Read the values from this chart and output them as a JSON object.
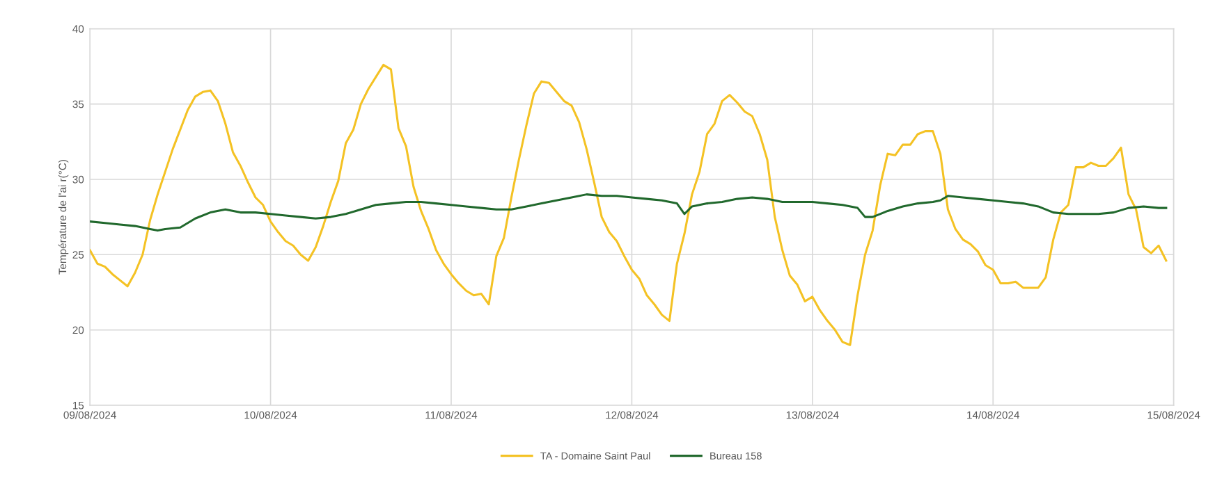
{
  "chart_data": {
    "type": "line",
    "ylabel": "Température de l'ai r(°C)",
    "xlim": [
      "2024-08-09",
      "2024-08-15"
    ],
    "xticks": [
      {
        "value": "2024-08-09",
        "label": "09/08/2024"
      },
      {
        "value": "2024-08-10",
        "label": "10/08/2024"
      },
      {
        "value": "2024-08-11",
        "label": "11/08/2024"
      },
      {
        "value": "2024-08-12",
        "label": "12/08/2024"
      },
      {
        "value": "2024-08-13",
        "label": "13/08/2024"
      },
      {
        "value": "2024-08-14",
        "label": "14/08/2024"
      },
      {
        "value": "2024-08-15",
        "label": "15/08/2024"
      }
    ],
    "ylim": [
      15,
      40
    ],
    "yticks": [
      15,
      20,
      25,
      30,
      35,
      40
    ],
    "grid": true,
    "legend": "bottom",
    "marker": "none",
    "line_style": "solid",
    "series": [
      {
        "name": "TA - Domaine Saint Paul",
        "color": "#f4c224",
        "x": [
          "2024-08-09T00:00",
          "2024-08-09T01:00",
          "2024-08-09T02:00",
          "2024-08-09T03:00",
          "2024-08-09T04:00",
          "2024-08-09T05:00",
          "2024-08-09T06:00",
          "2024-08-09T07:00",
          "2024-08-09T08:00",
          "2024-08-09T09:00",
          "2024-08-09T10:00",
          "2024-08-09T11:00",
          "2024-08-09T12:00",
          "2024-08-09T13:00",
          "2024-08-09T14:00",
          "2024-08-09T15:00",
          "2024-08-09T16:00",
          "2024-08-09T17:00",
          "2024-08-09T18:00",
          "2024-08-09T19:00",
          "2024-08-09T20:00",
          "2024-08-09T21:00",
          "2024-08-09T22:00",
          "2024-08-09T23:00",
          "2024-08-10T00:00",
          "2024-08-10T01:00",
          "2024-08-10T02:00",
          "2024-08-10T03:00",
          "2024-08-10T04:00",
          "2024-08-10T05:00",
          "2024-08-10T06:00",
          "2024-08-10T07:00",
          "2024-08-10T08:00",
          "2024-08-10T09:00",
          "2024-08-10T10:00",
          "2024-08-10T11:00",
          "2024-08-10T12:00",
          "2024-08-10T13:00",
          "2024-08-10T14:00",
          "2024-08-10T15:00",
          "2024-08-10T16:00",
          "2024-08-10T17:00",
          "2024-08-10T18:00",
          "2024-08-10T19:00",
          "2024-08-10T20:00",
          "2024-08-10T21:00",
          "2024-08-10T22:00",
          "2024-08-10T23:00",
          "2024-08-11T00:00",
          "2024-08-11T01:00",
          "2024-08-11T02:00",
          "2024-08-11T03:00",
          "2024-08-11T04:00",
          "2024-08-11T05:00",
          "2024-08-11T06:00",
          "2024-08-11T07:00",
          "2024-08-11T08:00",
          "2024-08-11T09:00",
          "2024-08-11T10:00",
          "2024-08-11T11:00",
          "2024-08-11T12:00",
          "2024-08-11T13:00",
          "2024-08-11T14:00",
          "2024-08-11T15:00",
          "2024-08-11T16:00",
          "2024-08-11T17:00",
          "2024-08-11T18:00",
          "2024-08-11T19:00",
          "2024-08-11T20:00",
          "2024-08-11T21:00",
          "2024-08-11T22:00",
          "2024-08-11T23:00",
          "2024-08-12T00:00",
          "2024-08-12T01:00",
          "2024-08-12T02:00",
          "2024-08-12T03:00",
          "2024-08-12T04:00",
          "2024-08-12T05:00",
          "2024-08-12T06:00",
          "2024-08-12T07:00",
          "2024-08-12T08:00",
          "2024-08-12T09:00",
          "2024-08-12T10:00",
          "2024-08-12T11:00",
          "2024-08-12T12:00",
          "2024-08-12T13:00",
          "2024-08-12T14:00",
          "2024-08-12T15:00",
          "2024-08-12T16:00",
          "2024-08-12T17:00",
          "2024-08-12T18:00",
          "2024-08-12T19:00",
          "2024-08-12T20:00",
          "2024-08-12T21:00",
          "2024-08-12T22:00",
          "2024-08-12T23:00",
          "2024-08-13T00:00",
          "2024-08-13T01:00",
          "2024-08-13T02:00",
          "2024-08-13T03:00",
          "2024-08-13T04:00",
          "2024-08-13T05:00",
          "2024-08-13T06:00",
          "2024-08-13T07:00",
          "2024-08-13T08:00",
          "2024-08-13T09:00",
          "2024-08-13T10:00",
          "2024-08-13T11:00",
          "2024-08-13T12:00",
          "2024-08-13T13:00",
          "2024-08-13T14:00",
          "2024-08-13T15:00",
          "2024-08-13T16:00",
          "2024-08-13T17:00",
          "2024-08-13T18:00",
          "2024-08-13T19:00",
          "2024-08-13T20:00",
          "2024-08-13T21:00",
          "2024-08-13T22:00",
          "2024-08-13T23:00",
          "2024-08-14T00:00",
          "2024-08-14T01:00",
          "2024-08-14T02:00",
          "2024-08-14T03:00",
          "2024-08-14T04:00",
          "2024-08-14T05:00",
          "2024-08-14T06:00",
          "2024-08-14T07:00",
          "2024-08-14T08:00",
          "2024-08-14T09:00",
          "2024-08-14T10:00",
          "2024-08-14T11:00",
          "2024-08-14T12:00",
          "2024-08-14T13:00",
          "2024-08-14T14:00",
          "2024-08-14T15:00",
          "2024-08-14T16:00",
          "2024-08-14T17:00",
          "2024-08-14T18:00",
          "2024-08-14T19:00",
          "2024-08-14T20:00",
          "2024-08-14T21:00",
          "2024-08-14T22:00",
          "2024-08-14T23:00"
        ],
        "values": [
          25.3,
          24.4,
          24.2,
          23.7,
          23.3,
          22.9,
          23.8,
          25.0,
          27.3,
          29.0,
          30.5,
          32.0,
          33.3,
          34.6,
          35.5,
          35.8,
          35.9,
          35.2,
          33.7,
          31.8,
          30.9,
          29.8,
          28.8,
          28.3,
          27.2,
          26.5,
          25.9,
          25.6,
          25.0,
          24.6,
          25.5,
          26.9,
          28.5,
          29.9,
          32.4,
          33.3,
          35.0,
          36.0,
          36.8,
          37.6,
          37.3,
          33.4,
          32.2,
          29.5,
          27.9,
          26.7,
          25.3,
          24.4,
          23.7,
          23.1,
          22.6,
          22.3,
          22.4,
          21.7,
          24.9,
          26.1,
          28.8,
          31.3,
          33.6,
          35.7,
          36.5,
          36.4,
          35.8,
          35.2,
          34.9,
          33.8,
          32.0,
          29.8,
          27.5,
          26.5,
          25.9,
          24.9,
          24.0,
          23.4,
          22.3,
          21.7,
          21.0,
          20.6,
          24.4,
          26.4,
          29.0,
          30.5,
          33.0,
          33.7,
          35.2,
          35.6,
          35.1,
          34.5,
          34.2,
          33.0,
          31.3,
          27.5,
          25.3,
          23.6,
          23.0,
          21.9,
          22.2,
          21.3,
          20.6,
          20.0,
          19.2,
          19.0,
          22.3,
          25.0,
          26.6,
          29.6,
          31.7,
          31.6,
          32.3,
          32.3,
          33.0,
          33.2,
          33.2,
          31.7,
          28.0,
          26.7,
          26.0,
          25.7,
          25.2,
          24.3,
          24.0,
          23.1,
          23.1,
          23.2,
          22.8,
          22.8,
          22.8,
          23.5,
          26.0,
          27.8,
          28.3,
          30.8,
          30.8,
          31.1,
          30.9,
          30.9,
          31.4,
          32.1,
          29.0,
          28.0,
          25.5,
          25.1,
          25.6,
          24.6
        ]
      },
      {
        "name": "Bureau 158",
        "color": "#21692d",
        "x": [
          "2024-08-09T00:00",
          "2024-08-09T02:00",
          "2024-08-09T04:00",
          "2024-08-09T06:00",
          "2024-08-09T08:00",
          "2024-08-09T09:00",
          "2024-08-09T10:00",
          "2024-08-09T12:00",
          "2024-08-09T14:00",
          "2024-08-09T16:00",
          "2024-08-09T18:00",
          "2024-08-09T20:00",
          "2024-08-09T22:00",
          "2024-08-10T00:00",
          "2024-08-10T02:00",
          "2024-08-10T04:00",
          "2024-08-10T06:00",
          "2024-08-10T08:00",
          "2024-08-10T10:00",
          "2024-08-10T12:00",
          "2024-08-10T14:00",
          "2024-08-10T16:00",
          "2024-08-10T18:00",
          "2024-08-10T20:00",
          "2024-08-10T22:00",
          "2024-08-11T00:00",
          "2024-08-11T02:00",
          "2024-08-11T04:00",
          "2024-08-11T06:00",
          "2024-08-11T08:00",
          "2024-08-11T10:00",
          "2024-08-11T12:00",
          "2024-08-11T14:00",
          "2024-08-11T16:00",
          "2024-08-11T18:00",
          "2024-08-11T20:00",
          "2024-08-11T22:00",
          "2024-08-12T00:00",
          "2024-08-12T02:00",
          "2024-08-12T04:00",
          "2024-08-12T06:00",
          "2024-08-12T07:00",
          "2024-08-12T08:00",
          "2024-08-12T10:00",
          "2024-08-12T12:00",
          "2024-08-12T14:00",
          "2024-08-12T16:00",
          "2024-08-12T18:00",
          "2024-08-12T20:00",
          "2024-08-12T22:00",
          "2024-08-13T00:00",
          "2024-08-13T02:00",
          "2024-08-13T04:00",
          "2024-08-13T06:00",
          "2024-08-13T07:00",
          "2024-08-13T08:00",
          "2024-08-13T10:00",
          "2024-08-13T12:00",
          "2024-08-13T14:00",
          "2024-08-13T16:00",
          "2024-08-13T17:00",
          "2024-08-13T18:00",
          "2024-08-13T20:00",
          "2024-08-13T22:00",
          "2024-08-14T00:00",
          "2024-08-14T02:00",
          "2024-08-14T04:00",
          "2024-08-14T06:00",
          "2024-08-14T08:00",
          "2024-08-14T10:00",
          "2024-08-14T12:00",
          "2024-08-14T14:00",
          "2024-08-14T16:00",
          "2024-08-14T18:00",
          "2024-08-14T20:00",
          "2024-08-14T22:00",
          "2024-08-14T23:00"
        ],
        "values": [
          27.2,
          27.1,
          27.0,
          26.9,
          26.7,
          26.6,
          26.7,
          26.8,
          27.4,
          27.8,
          28.0,
          27.8,
          27.8,
          27.7,
          27.6,
          27.5,
          27.4,
          27.5,
          27.7,
          28.0,
          28.3,
          28.4,
          28.5,
          28.5,
          28.4,
          28.3,
          28.2,
          28.1,
          28.0,
          28.0,
          28.2,
          28.4,
          28.6,
          28.8,
          29.0,
          28.9,
          28.9,
          28.8,
          28.7,
          28.6,
          28.4,
          27.7,
          28.2,
          28.4,
          28.5,
          28.7,
          28.8,
          28.7,
          28.5,
          28.5,
          28.5,
          28.4,
          28.3,
          28.1,
          27.5,
          27.5,
          27.9,
          28.2,
          28.4,
          28.5,
          28.6,
          28.9,
          28.8,
          28.7,
          28.6,
          28.5,
          28.4,
          28.2,
          27.8,
          27.7,
          27.7,
          27.7,
          27.8,
          28.1,
          28.2,
          28.1,
          28.1
        ]
      }
    ]
  }
}
